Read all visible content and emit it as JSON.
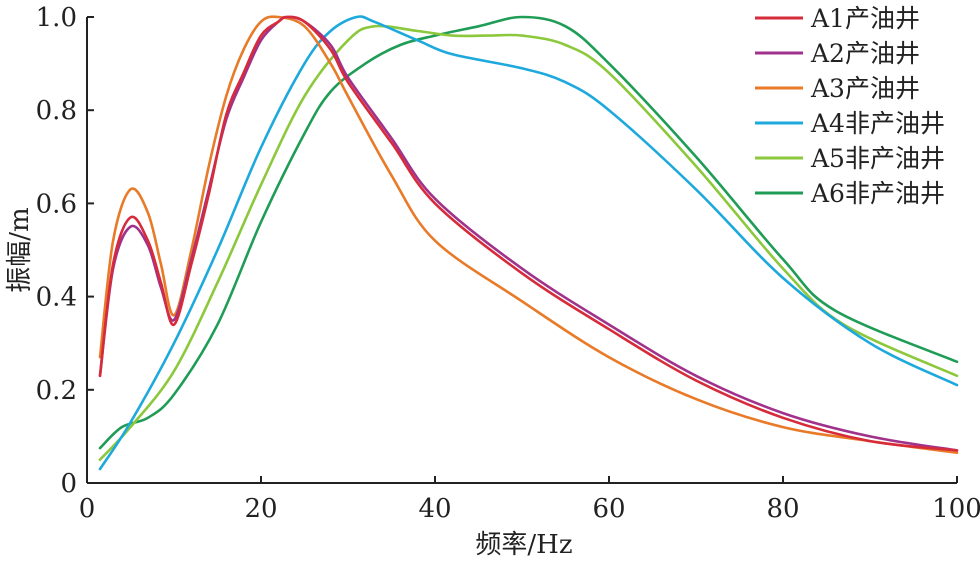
{
  "chart_data": {
    "type": "line",
    "xlabel": "频率/Hz",
    "ylabel": "振幅/m",
    "xlim": [
      0,
      100
    ],
    "ylim": [
      0,
      1.0
    ],
    "xticks": [
      0,
      20,
      40,
      60,
      80,
      100
    ],
    "yticks": [
      0,
      0.2,
      0.4,
      0.6,
      0.8,
      1.0
    ],
    "xtick_labels": [
      "0",
      "20",
      "40",
      "60",
      "80",
      "100"
    ],
    "ytick_labels": [
      "0",
      "0.2",
      "0.4",
      "0.6",
      "0.8",
      "1.0"
    ],
    "grid": false,
    "legend_position": "top-right",
    "series": [
      {
        "name": "A1产油井",
        "color": "#d62b3a",
        "x": [
          1.5,
          3,
          5,
          7,
          8.5,
          10,
          12,
          14,
          16,
          18,
          20,
          22,
          23,
          25,
          28,
          30,
          35,
          40,
          50,
          60,
          70,
          80,
          90,
          100
        ],
        "y": [
          0.23,
          0.47,
          0.57,
          0.52,
          0.43,
          0.34,
          0.47,
          0.62,
          0.79,
          0.88,
          0.96,
          0.99,
          1.0,
          0.99,
          0.93,
          0.86,
          0.73,
          0.6,
          0.45,
          0.33,
          0.22,
          0.14,
          0.09,
          0.07
        ]
      },
      {
        "name": "A2产油井",
        "color": "#a0328c",
        "x": [
          1.5,
          3,
          5,
          7,
          8.5,
          10,
          12,
          14,
          16,
          18,
          20,
          22,
          23,
          25,
          28,
          30,
          35,
          40,
          50,
          60,
          70,
          80,
          90,
          100
        ],
        "y": [
          0.23,
          0.46,
          0.55,
          0.51,
          0.42,
          0.35,
          0.48,
          0.63,
          0.78,
          0.87,
          0.95,
          0.99,
          1.0,
          0.99,
          0.94,
          0.87,
          0.74,
          0.61,
          0.46,
          0.34,
          0.23,
          0.15,
          0.1,
          0.07
        ]
      },
      {
        "name": "A3产油井",
        "color": "#e87a28",
        "x": [
          1.5,
          3,
          5,
          7,
          8.5,
          10,
          12,
          14,
          16,
          18,
          20,
          22,
          25,
          28,
          30,
          35,
          40,
          50,
          60,
          70,
          80,
          90,
          100
        ],
        "y": [
          0.27,
          0.52,
          0.63,
          0.58,
          0.47,
          0.36,
          0.5,
          0.68,
          0.83,
          0.93,
          0.99,
          1.0,
          0.98,
          0.9,
          0.83,
          0.66,
          0.52,
          0.39,
          0.27,
          0.18,
          0.12,
          0.09,
          0.065
        ]
      },
      {
        "name": "A4非产油井",
        "color": "#1ea9dc",
        "x": [
          1.5,
          5,
          10,
          15,
          20,
          25,
          28,
          31,
          33,
          38,
          42,
          50,
          55,
          60,
          70,
          80,
          90,
          100
        ],
        "y": [
          0.03,
          0.13,
          0.3,
          0.5,
          0.72,
          0.9,
          0.97,
          1.0,
          0.99,
          0.95,
          0.92,
          0.89,
          0.86,
          0.8,
          0.63,
          0.44,
          0.3,
          0.21
        ]
      },
      {
        "name": "A5非产油井",
        "color": "#8cc83c",
        "x": [
          1.5,
          5,
          10,
          15,
          20,
          25,
          30,
          33,
          38,
          42,
          46,
          50,
          55,
          60,
          70,
          80,
          87,
          100
        ],
        "y": [
          0.05,
          0.12,
          0.24,
          0.43,
          0.64,
          0.83,
          0.95,
          0.98,
          0.97,
          0.96,
          0.96,
          0.96,
          0.94,
          0.88,
          0.68,
          0.46,
          0.34,
          0.23
        ]
      },
      {
        "name": "A6非产油井",
        "color": "#1f9c55",
        "x": [
          1.5,
          4,
          7,
          10,
          15,
          20,
          25,
          28,
          32,
          36,
          40,
          45,
          50,
          55,
          60,
          70,
          80,
          86,
          100
        ],
        "y": [
          0.075,
          0.12,
          0.14,
          0.19,
          0.34,
          0.56,
          0.75,
          0.84,
          0.9,
          0.94,
          0.96,
          0.98,
          1.0,
          0.98,
          0.9,
          0.7,
          0.48,
          0.37,
          0.26
        ]
      }
    ]
  }
}
